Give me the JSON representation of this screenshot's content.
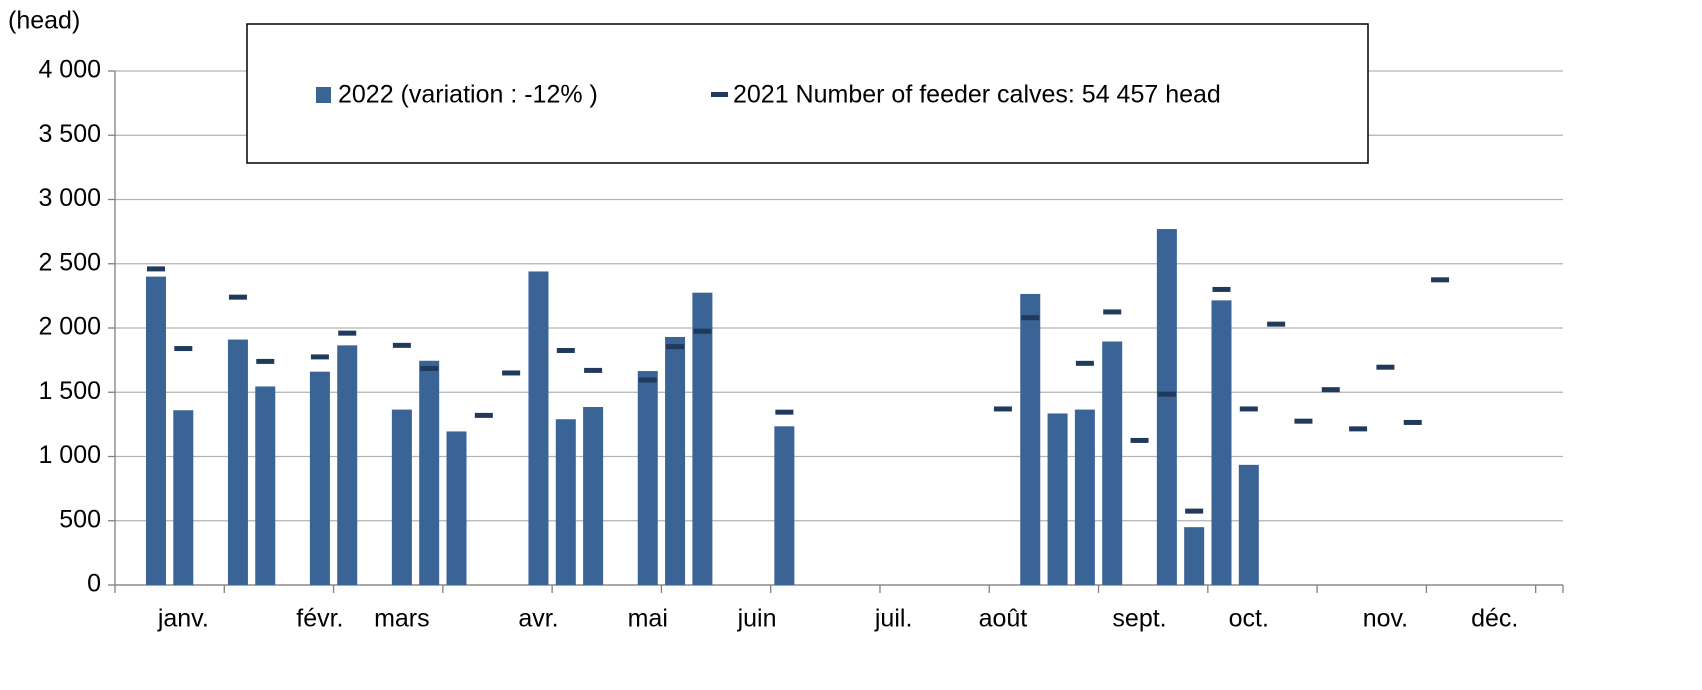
{
  "chart_data": {
    "type": "bar",
    "y_label": "(head)",
    "categories": [
      null,
      null,
      "janv.",
      null,
      null,
      null,
      null,
      "févr.",
      null,
      null,
      "mars",
      null,
      null,
      null,
      null,
      "avr.",
      null,
      null,
      null,
      "mai",
      null,
      null,
      null,
      "juin",
      null,
      null,
      null,
      null,
      "juil.",
      null,
      null,
      null,
      "août",
      null,
      null,
      null,
      null,
      "sept.",
      null,
      null,
      null,
      "oct.",
      null,
      null,
      null,
      null,
      "nov.",
      null,
      null,
      null,
      "déc.",
      null,
      null
    ],
    "series": [
      {
        "name": "2022 (variation : -12% )",
        "color": "#3a6396",
        "values": [
          null,
          2400,
          1360,
          null,
          1910,
          1545,
          null,
          1660,
          1865,
          null,
          1365,
          1745,
          1195,
          null,
          null,
          2440,
          1290,
          1385,
          null,
          1665,
          1930,
          2275,
          null,
          null,
          1235,
          null,
          null,
          null,
          null,
          null,
          null,
          null,
          null,
          2265,
          1335,
          1365,
          1895,
          null,
          2770,
          450,
          2215,
          935,
          null,
          null,
          null,
          null,
          null,
          null,
          null,
          null,
          null,
          null,
          null
        ]
      },
      {
        "name": "2021 Number of feeder calves: 54 457 head",
        "color": "#1f3a5a",
        "values": [
          null,
          2460,
          1840,
          null,
          2240,
          1740,
          null,
          1775,
          1960,
          null,
          1865,
          1685,
          null,
          1320,
          1650,
          null,
          1825,
          1670,
          null,
          1595,
          1855,
          1975,
          null,
          null,
          1345,
          null,
          null,
          null,
          null,
          null,
          null,
          null,
          1370,
          2080,
          null,
          1725,
          2125,
          1125,
          1485,
          575,
          2300,
          1370,
          2030,
          1275,
          1520,
          1215,
          1695,
          1265,
          2375,
          null,
          null,
          null,
          null
        ]
      }
    ],
    "ylim": [
      0,
      4000
    ],
    "yticks": [
      0,
      500,
      {
        "value": 1000,
        "label": "1 000"
      },
      {
        "value": 1500,
        "label": "1 500"
      },
      {
        "value": 2000,
        "label": "2 000"
      },
      {
        "value": 2500,
        "label": "2 500"
      },
      {
        "value": 3000,
        "label": "3 000"
      },
      {
        "value": 3500,
        "label": "3 500"
      },
      {
        "value": 4000,
        "label": "4 000"
      }
    ],
    "grid": true
  }
}
